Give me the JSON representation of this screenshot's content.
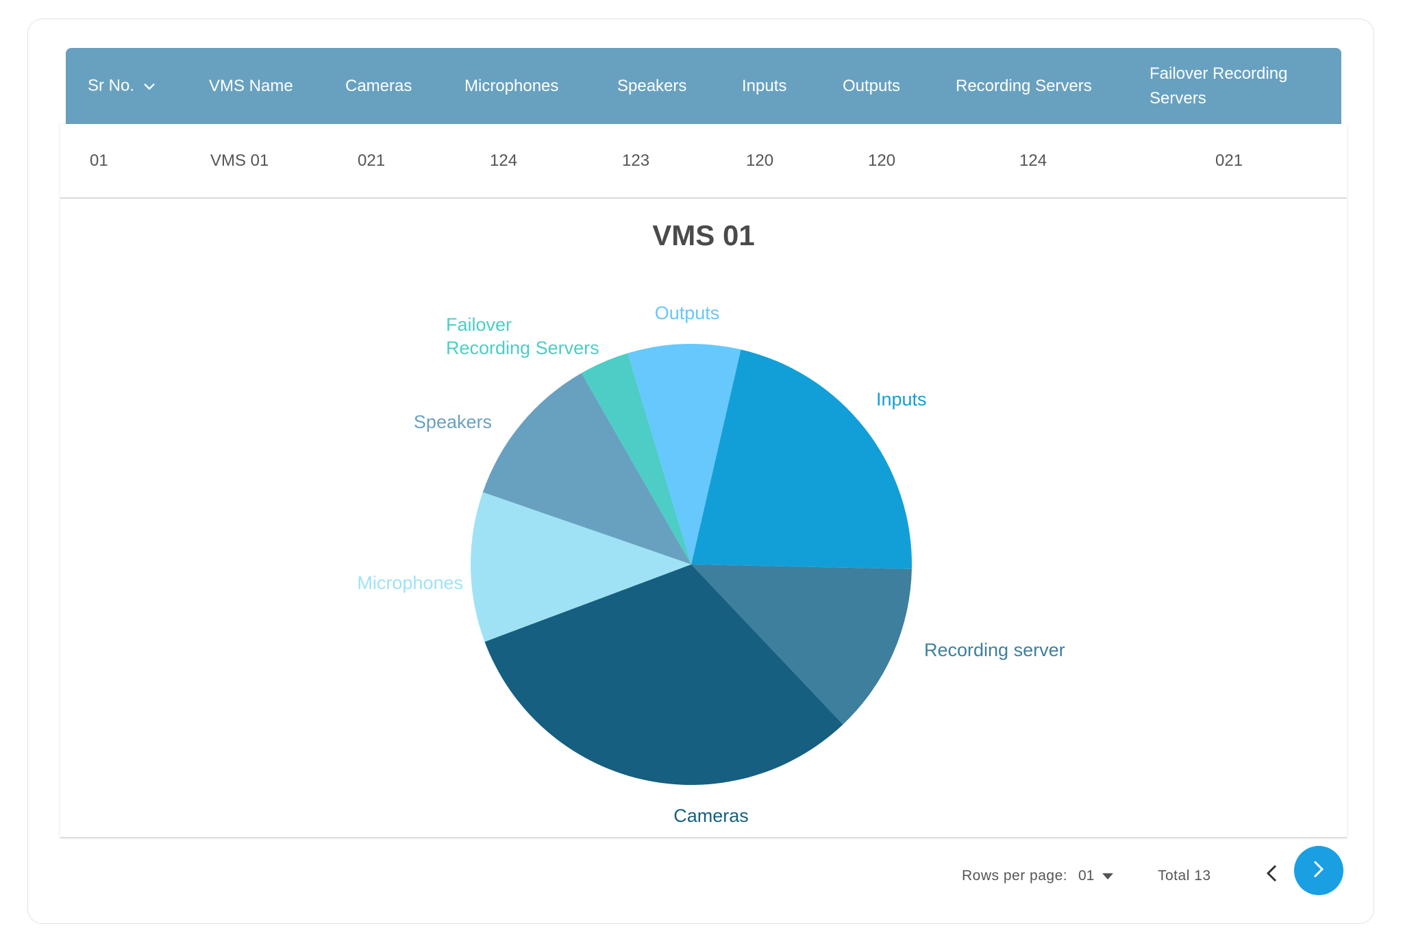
{
  "table": {
    "columns": [
      "Sr No.",
      "VMS Name",
      "Cameras",
      "Microphones",
      "Speakers",
      "Inputs",
      "Outputs",
      "Recording Servers",
      "Failover Recording Servers"
    ],
    "rows": [
      [
        "01",
        "VMS 01",
        "021",
        "124",
        "123",
        "120",
        "120",
        "124",
        "021"
      ]
    ]
  },
  "chart_data": {
    "type": "pie",
    "title": "VMS 01",
    "slices": [
      {
        "label": "Inputs",
        "value": 22.1,
        "color": "#129fd8"
      },
      {
        "label": "Recording server",
        "value": 12.8,
        "color": "#3d7f9d"
      },
      {
        "label": "Cameras",
        "value": 31.9,
        "color": "#165f80"
      },
      {
        "label": "Microphones",
        "value": 11.2,
        "color": "#a0e2f5"
      },
      {
        "label": "Speakers",
        "value": 11.6,
        "color": "#68a1c0"
      },
      {
        "label": "Failover Recording Servers",
        "value": 3.7,
        "color": "#4dcdc5"
      },
      {
        "label": "Outputs",
        "value": 8.4,
        "color": "#66c8fc"
      }
    ],
    "start_angle_deg": 13
  },
  "pagination": {
    "rows_per_page_label": "Rows per page:",
    "rows_per_page_value": "01",
    "total": "Total 13"
  },
  "colors": {
    "header_bg": "#68a1c0",
    "accent_button": "#1a9fe3"
  }
}
